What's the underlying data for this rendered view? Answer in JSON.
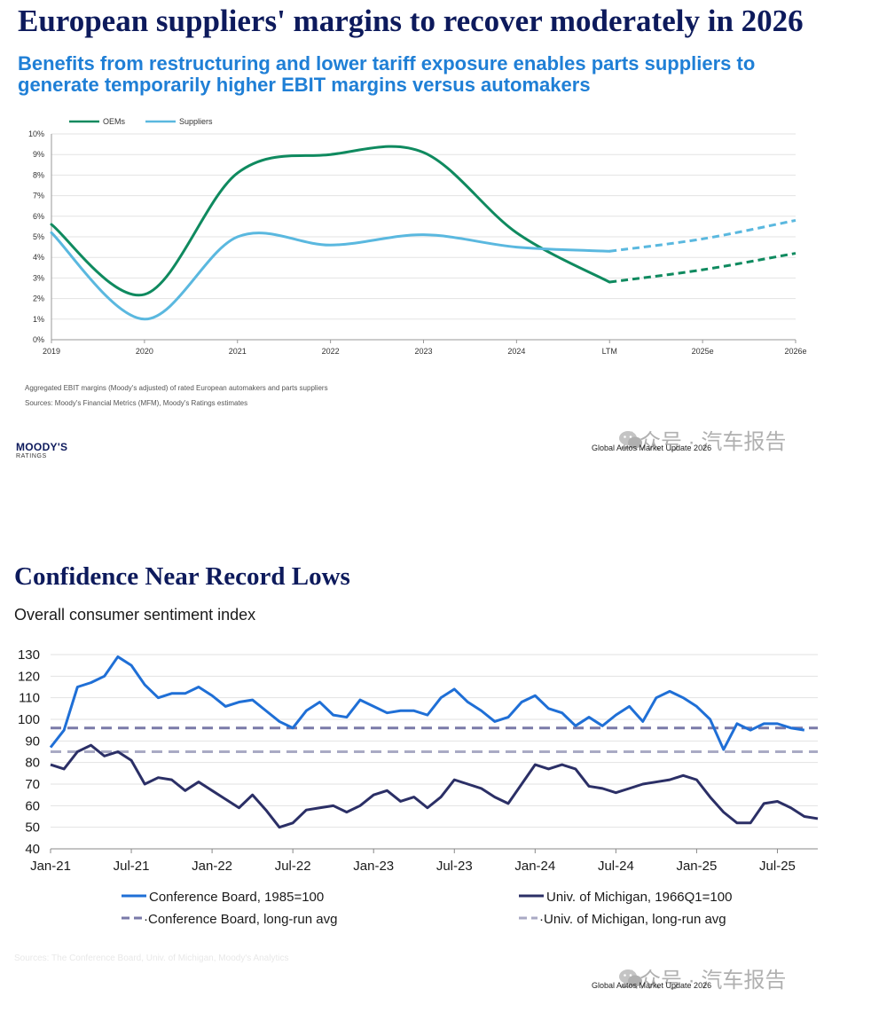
{
  "chart_data": [
    {
      "type": "line",
      "title": "European suppliers' margins to recover moderately in 2026",
      "subtitle": "Benefits from restructuring and lower tariff exposure enables parts suppliers to generate temporarily higher EBIT margins versus automakers",
      "categories": [
        "2019",
        "2020",
        "2021",
        "2022",
        "2023",
        "2024",
        "LTM",
        "2025e",
        "2026e"
      ],
      "y_ticks": [
        "0%",
        "1%",
        "2%",
        "3%",
        "4%",
        "5%",
        "6%",
        "7%",
        "8%",
        "9%",
        "10%"
      ],
      "ylim": [
        0,
        10
      ],
      "grid": true,
      "legend_position": "top-left",
      "series": [
        {
          "name": "OEMs",
          "color": "#0f8a5f",
          "actual": [
            5.6,
            2.2,
            8.1,
            9.0,
            9.1,
            5.2,
            2.8
          ],
          "estimates": [
            2.8,
            3.4,
            4.2
          ]
        },
        {
          "name": "Suppliers",
          "color": "#5ab8df",
          "actual": [
            5.2,
            1.0,
            5.0,
            4.6,
            5.1,
            4.5,
            4.3
          ],
          "estimates": [
            4.3,
            4.9,
            5.8
          ]
        }
      ],
      "note": "Aggregated EBIT margins (Moody's adjusted) of rated European automakers and parts suppliers",
      "sources": "Sources: Moody's Financial Metrics (MFM), Moody's Ratings estimates"
    },
    {
      "type": "line",
      "title": "Confidence Near Record Lows",
      "subtitle": "Overall consumer sentiment index",
      "x_ticks": [
        "Jan-21",
        "Jul-21",
        "Jan-22",
        "Jul-22",
        "Jan-23",
        "Jul-23",
        "Jan-24",
        "Jul-24",
        "Jan-25",
        "Jul-25"
      ],
      "y_ticks": [
        "40",
        "50",
        "60",
        "70",
        "80",
        "90",
        "100",
        "110",
        "120",
        "130"
      ],
      "ylim": [
        40,
        130
      ],
      "grid": true,
      "legend_position": "bottom",
      "series": [
        {
          "name": "Conference Board, 1985=100",
          "color": "#1f6fd6",
          "style": "solid",
          "values": [
            87,
            95,
            115,
            117,
            120,
            129,
            125,
            116,
            110,
            112,
            112,
            115,
            111,
            106,
            108,
            109,
            104,
            99,
            96,
            104,
            108,
            102,
            101,
            109,
            106,
            103,
            104,
            104,
            102,
            110,
            114,
            108,
            104,
            99,
            101,
            108,
            111,
            105,
            103,
            97,
            101,
            97,
            102,
            106,
            99,
            110,
            113,
            110,
            106,
            100,
            86,
            98,
            95,
            98,
            98,
            96,
            95
          ]
        },
        {
          "name": "Univ. of Michigan, 1966Q1=100",
          "color": "#2b2f66",
          "style": "solid",
          "values": [
            79,
            77,
            85,
            88,
            83,
            85,
            81,
            70,
            73,
            72,
            67,
            71,
            67,
            63,
            59,
            65,
            58,
            50,
            52,
            58,
            59,
            60,
            57,
            60,
            65,
            67,
            62,
            64,
            59,
            64,
            72,
            70,
            68,
            64,
            61,
            70,
            79,
            77,
            79,
            77,
            69,
            68,
            66,
            68,
            70,
            71,
            72,
            74,
            72,
            64,
            57,
            52,
            52,
            61,
            62,
            59,
            55,
            54
          ]
        },
        {
          "name": "Conference Board, long-run avg",
          "color": "#7a7aa8",
          "style": "dashed",
          "value": 96
        },
        {
          "name": "Univ. of Michigan, long-run avg",
          "color": "#a9aac4",
          "style": "dashed",
          "value": 85
        }
      ],
      "sources": "Sources: The Conference Board, Univ. of Michigan, Moody's Analytics"
    }
  ],
  "header": {
    "title1": "European suppliers' margins to recover moderately in 2026",
    "subtitle1": "Benefits from restructuring and lower tariff exposure enables parts suppliers to generate temporarily higher EBIT margins versus automakers",
    "title2": "Confidence Near Record Lows",
    "subtitle2": "Overall consumer sentiment index"
  },
  "legend1": {
    "oems": "OEMs",
    "suppliers": "Suppliers"
  },
  "legend2": {
    "cb": "Conference Board, 1985=100",
    "um": "Univ. of Michigan, 1966Q1=100",
    "cb_avg": "·Conference Board, long-run avg",
    "um_avg": "·Univ. of Michigan, long-run avg"
  },
  "notes": {
    "note1": "Aggregated EBIT margins (Moody's adjusted) of rated European automakers and parts suppliers",
    "sources1": "Sources: Moody's Financial Metrics (MFM), Moody's Ratings estimates",
    "sources2": "Sources: The Conference Board, Univ. of Michigan, Moody's Analytics"
  },
  "logo": {
    "main": "MOODY'S",
    "sub": "RATINGS"
  },
  "footer": {
    "text1": "Global Autos Market Update 2026",
    "text2": "Global Autos Market Update 2026"
  },
  "watermark": {
    "text1": "公众号 · 汽车报告",
    "text2": "公众号 · 汽车报告"
  }
}
